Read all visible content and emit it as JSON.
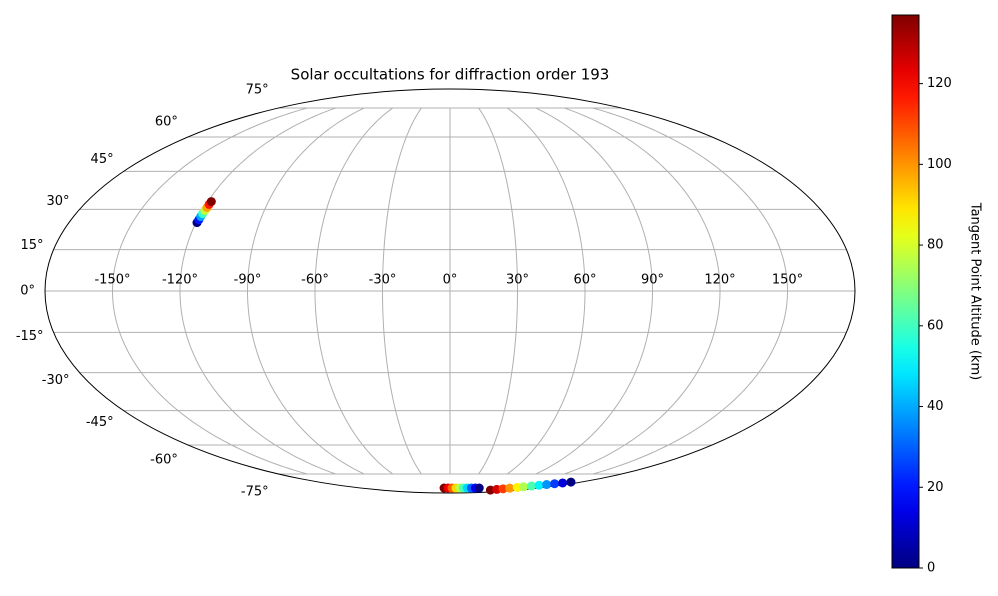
{
  "chart_data": {
    "type": "scatter",
    "projection": "mollweide",
    "title": "Solar occultations for diffraction order 193",
    "x": [
      -119.5,
      -119.3,
      -119.2,
      -119.0,
      -118.8,
      -118.6,
      -118.5,
      -118.3,
      -12,
      -4,
      4,
      12,
      20,
      27,
      35,
      43,
      51,
      59,
      106,
      111,
      117,
      122,
      128,
      133,
      139,
      144,
      150,
      155,
      161,
      166
    ],
    "y": [
      25,
      26.1,
      27.3,
      28.4,
      29.6,
      30.7,
      31.9,
      33,
      -84.5,
      -84.5,
      -84.5,
      -84.5,
      -84.5,
      -84.5,
      -84.5,
      -84.5,
      -84.5,
      -84.5,
      -86.3,
      -85.7,
      -85.2,
      -84.6,
      -84.0,
      -83.5,
      -82.9,
      -82.3,
      -81.8,
      -81.2,
      -80.7,
      -80.1
    ],
    "values": [
      0,
      20,
      39,
      59,
      78,
      98,
      117,
      137,
      137,
      122,
      107,
      91,
      76,
      61,
      46,
      30,
      15,
      0,
      137,
      125,
      112,
      100,
      87,
      75,
      62,
      50,
      37,
      25,
      12,
      0
    ],
    "colormap": "jet",
    "xticks": [
      {
        "value": -150,
        "label": "-150°"
      },
      {
        "value": -120,
        "label": "-120°"
      },
      {
        "value": -90,
        "label": "-90°"
      },
      {
        "value": -60,
        "label": "-60°"
      },
      {
        "value": -30,
        "label": "-30°"
      },
      {
        "value": 0,
        "label": "0°"
      },
      {
        "value": 30,
        "label": "30°"
      },
      {
        "value": 60,
        "label": "60°"
      },
      {
        "value": 90,
        "label": "90°"
      },
      {
        "value": 120,
        "label": "120°"
      },
      {
        "value": 150,
        "label": "150°"
      }
    ],
    "yticks": [
      {
        "value": -75,
        "label": "-75°"
      },
      {
        "value": -60,
        "label": "-60°"
      },
      {
        "value": -45,
        "label": "-45°"
      },
      {
        "value": -30,
        "label": "-30°"
      },
      {
        "value": -15,
        "label": "-15°"
      },
      {
        "value": 0,
        "label": "0°"
      },
      {
        "value": 15,
        "label": "15°"
      },
      {
        "value": 30,
        "label": "30°"
      },
      {
        "value": 45,
        "label": "45°"
      },
      {
        "value": 60,
        "label": "60°"
      },
      {
        "value": 75,
        "label": "75°"
      }
    ],
    "grid": true,
    "colorbar": {
      "label": "Tangent Point Altitude (km)",
      "lim": [
        0,
        137
      ],
      "ticks": [
        0,
        20,
        40,
        60,
        80,
        100,
        120
      ]
    }
  }
}
